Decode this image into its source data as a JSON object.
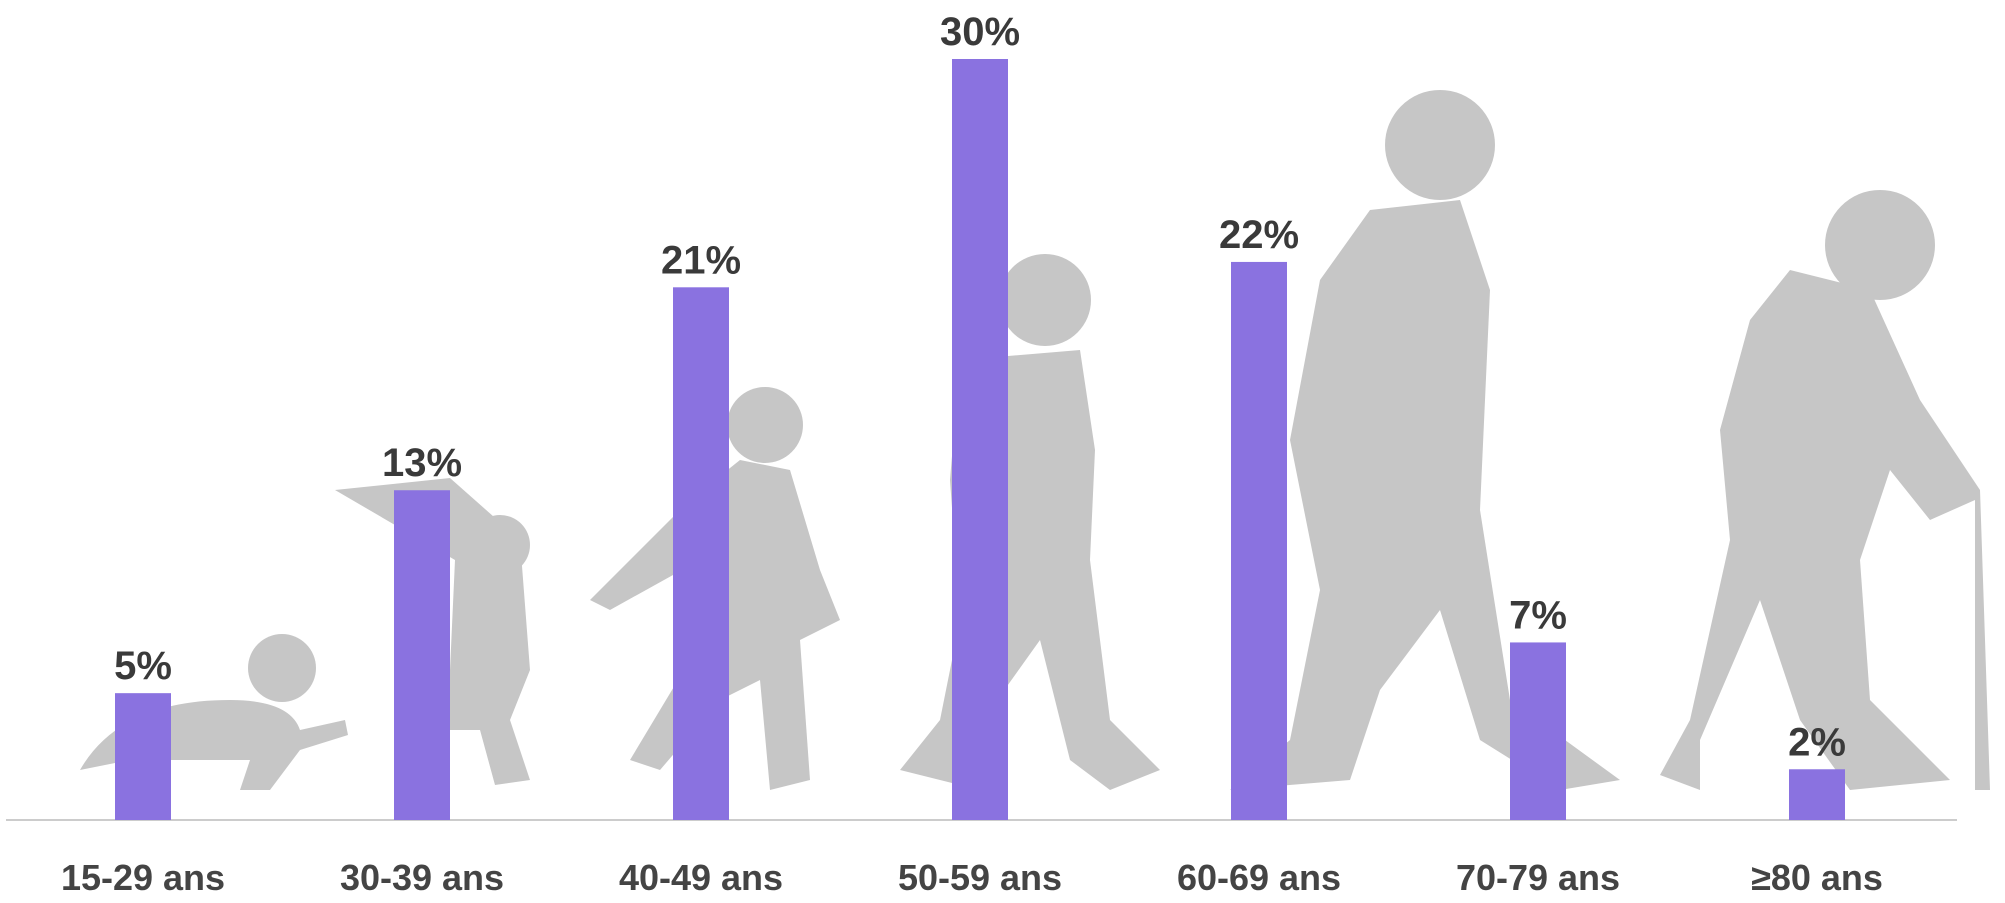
{
  "chart_data": {
    "type": "bar",
    "categories": [
      "15-29 ans",
      "30-39 ans",
      "40-49 ans",
      "50-59 ans",
      "60-69 ans",
      "70-79 ans",
      "≥80 ans"
    ],
    "values": [
      5,
      13,
      21,
      30,
      22,
      7,
      2
    ],
    "value_labels": [
      "5%",
      "13%",
      "21%",
      "30%",
      "22%",
      "7%",
      "2%"
    ],
    "color": "#8a72e0"
  }
}
